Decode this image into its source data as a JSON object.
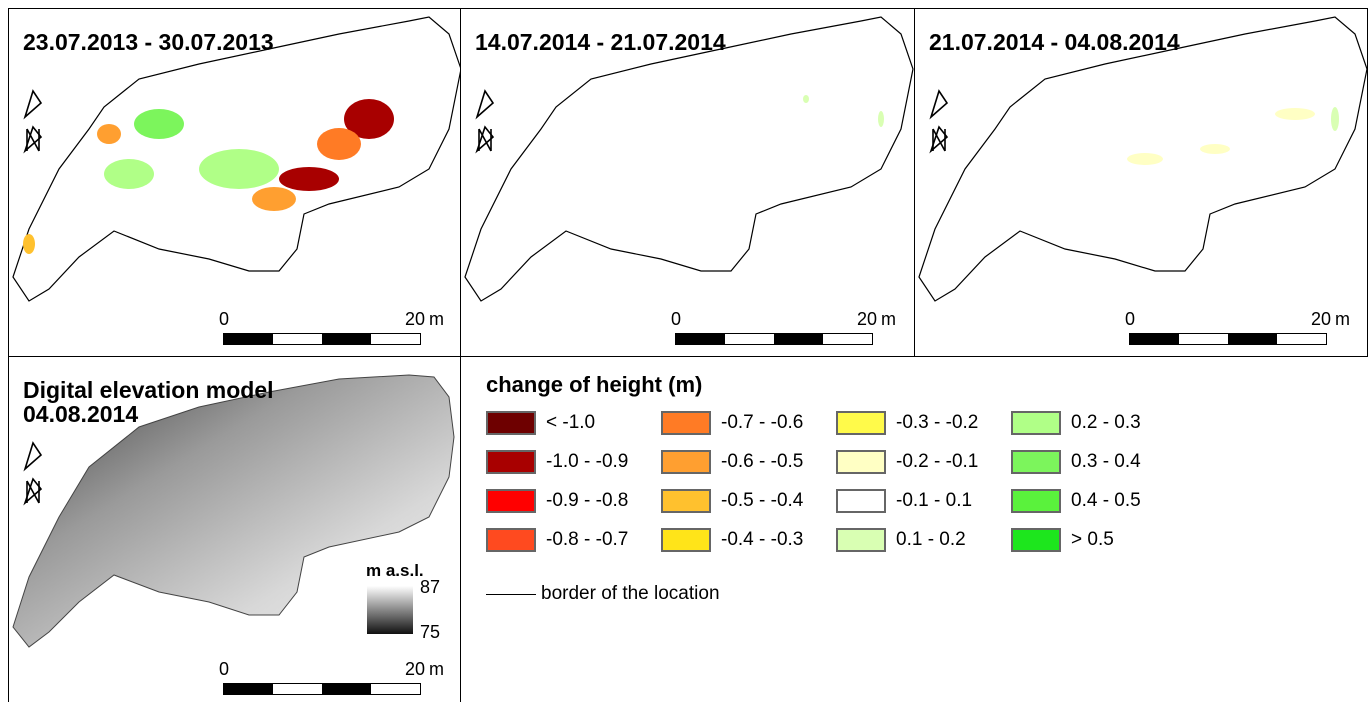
{
  "panels": [
    {
      "title": "23.07.2013 - 30.07.2013"
    },
    {
      "title": "14.07.2014 - 21.07.2014"
    },
    {
      "title": "21.07.2014 - 04.08.2014"
    }
  ],
  "dem": {
    "title_line1": "Digital elevation model",
    "title_line2": "04.08.2014",
    "units": "m a.s.l.",
    "max": "87",
    "min": "75"
  },
  "scale": {
    "zero": "0",
    "end": "20",
    "unit": "m"
  },
  "legend": {
    "title": "change of height (m)",
    "items": [
      {
        "label": "< -1.0",
        "color": "#6e0000"
      },
      {
        "label": "-1.0 - -0.9",
        "color": "#a80000"
      },
      {
        "label": "-0.9 - -0.8",
        "color": "#ff0000"
      },
      {
        "label": "-0.8 - -0.7",
        "color": "#ff4a1f"
      },
      {
        "label": "-0.7 - -0.6",
        "color": "#ff7b25"
      },
      {
        "label": "-0.6 - -0.5",
        "color": "#ff9f30"
      },
      {
        "label": "-0.5 - -0.4",
        "color": "#ffc12e"
      },
      {
        "label": "-0.4 - -0.3",
        "color": "#ffe419"
      },
      {
        "label": "-0.3 - -0.2",
        "color": "#fffa4a"
      },
      {
        "label": "-0.2 - -0.1",
        "color": "#ffffc4"
      },
      {
        "label": "-0.1 - 0.1",
        "color": "#ffffff"
      },
      {
        "label": "0.1 - 0.2",
        "color": "#d9ffb3"
      },
      {
        "label": "0.2 - 0.3",
        "color": "#b0ff87"
      },
      {
        "label": "0.3 - 0.4",
        "color": "#7cf55c"
      },
      {
        "label": "0.4 - 0.5",
        "color": "#5af23c"
      },
      {
        "label": "> 0.5",
        "color": "#1de61d"
      }
    ],
    "border_label": "border of the location"
  }
}
